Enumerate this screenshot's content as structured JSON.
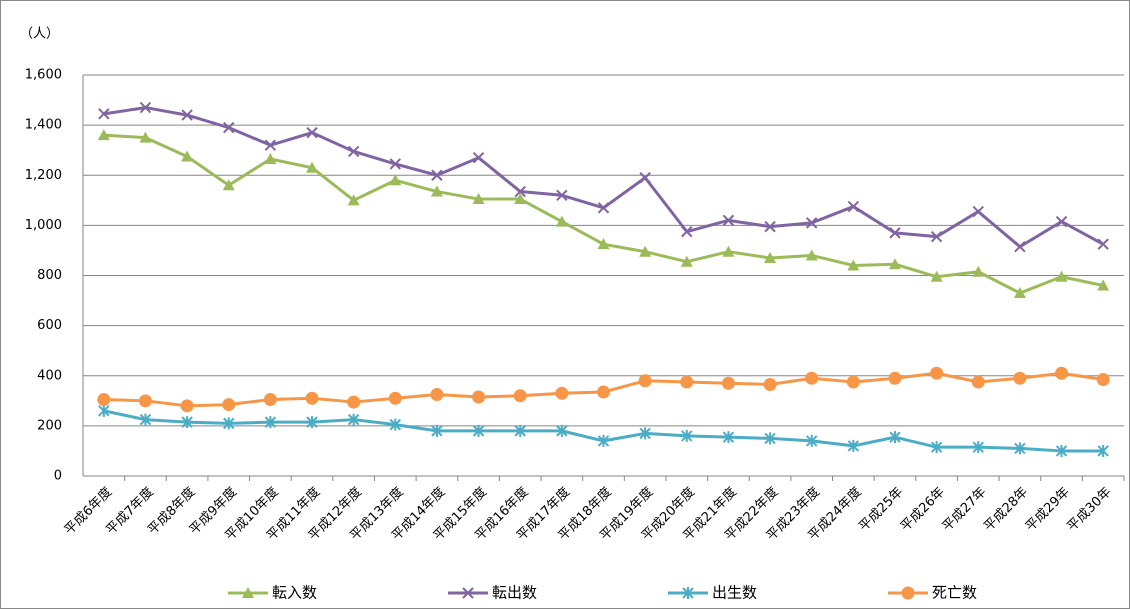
{
  "chart_data": {
    "type": "line",
    "y_label": "（人）",
    "categories": [
      "平成6年度",
      "平成7年度",
      "平成8年度",
      "平成9年度",
      "平成10年度",
      "平成11年度",
      "平成12年度",
      "平成13年度",
      "平成14年度",
      "平成15年度",
      "平成16年度",
      "平成17年度",
      "平成18年度",
      "平成19年度",
      "平成20年度",
      "平成21年度",
      "平成22年度",
      "平成23年度",
      "平成24年度",
      "平成25年",
      "平成26年",
      "平成27年",
      "平成28年",
      "平成29年",
      "平成30年"
    ],
    "series": [
      {
        "name": "転入数",
        "color": "#9bbb59",
        "marker": "triangle",
        "values": [
          1360,
          1350,
          1275,
          1160,
          1265,
          1230,
          1100,
          1180,
          1135,
          1105,
          1105,
          1015,
          925,
          895,
          855,
          895,
          870,
          880,
          840,
          845,
          795,
          815,
          730,
          795,
          760
        ]
      },
      {
        "name": "転出数",
        "color": "#8064a2",
        "marker": "x",
        "values": [
          1445,
          1470,
          1440,
          1390,
          1320,
          1370,
          1295,
          1245,
          1200,
          1270,
          1135,
          1120,
          1070,
          1190,
          975,
          1020,
          995,
          1010,
          1075,
          970,
          955,
          1055,
          915,
          1015,
          925
        ]
      },
      {
        "name": "出生数",
        "color": "#4bacc6",
        "marker": "star",
        "values": [
          260,
          225,
          215,
          210,
          215,
          215,
          225,
          205,
          180,
          180,
          180,
          180,
          140,
          170,
          160,
          155,
          150,
          140,
          120,
          155,
          115,
          115,
          110,
          100,
          100
        ]
      },
      {
        "name": "死亡数",
        "color": "#f79646",
        "marker": "circle",
        "values": [
          305,
          300,
          280,
          285,
          305,
          310,
          295,
          310,
          325,
          315,
          320,
          330,
          335,
          380,
          375,
          370,
          365,
          390,
          375,
          390,
          410,
          375,
          390,
          410,
          385
        ]
      }
    ],
    "ylim": [
      0,
      1600
    ],
    "yticks": [
      0,
      200,
      400,
      600,
      800,
      {
        "value": 1000,
        "label": "1,000"
      },
      {
        "value": 1200,
        "label": "1,200"
      },
      {
        "value": 1400,
        "label": "1,400"
      },
      {
        "value": 1600,
        "label": "1,600"
      }
    ],
    "grid": true,
    "legend": "bottom"
  }
}
